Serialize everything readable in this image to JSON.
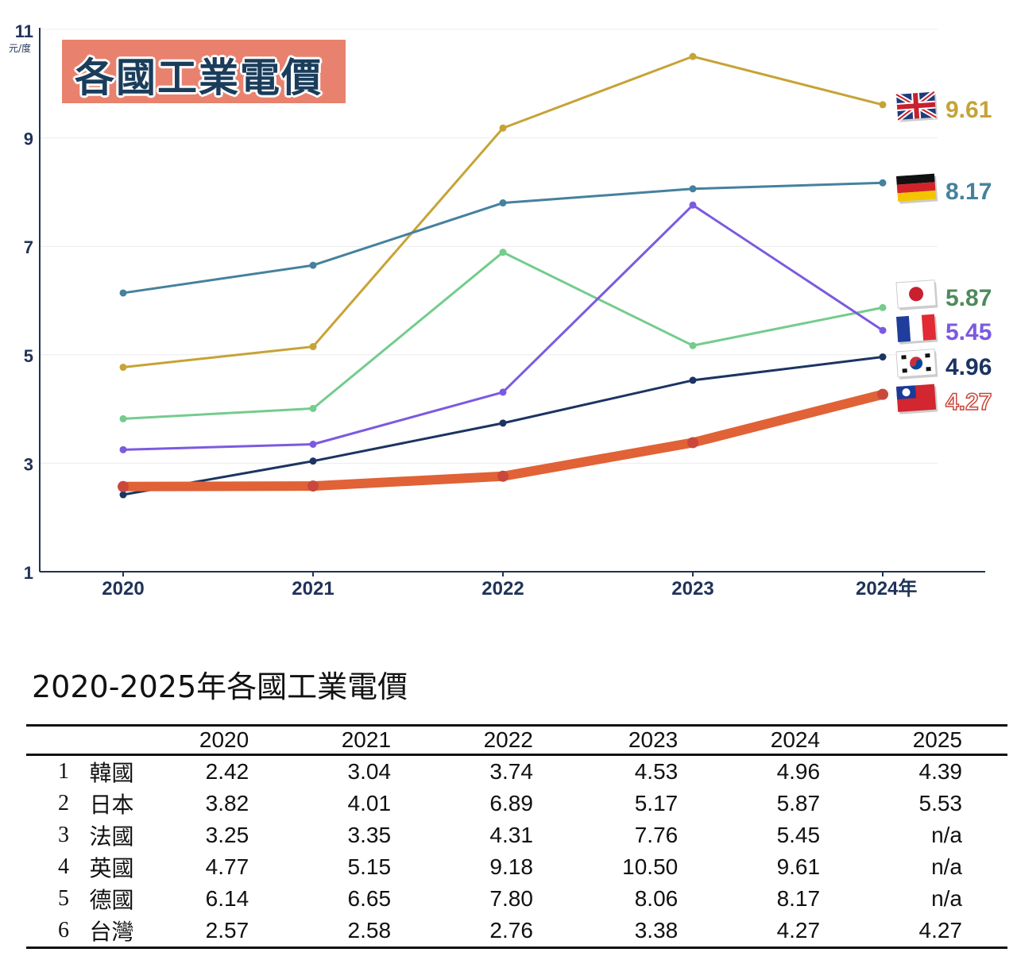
{
  "chart_data": {
    "type": "line",
    "title": "各國工業電價",
    "ylabel": "元/度",
    "x": [
      "2020",
      "2021",
      "2022",
      "2023",
      "2024"
    ],
    "x_tick_labels": [
      "2020",
      "2021",
      "2022",
      "2023",
      "2024年"
    ],
    "ylim": [
      1,
      11
    ],
    "y_ticks": [
      1,
      3,
      5,
      7,
      9,
      11
    ],
    "grid": true,
    "series": [
      {
        "name": "英國",
        "color": "#c6a336",
        "values": [
          4.77,
          5.15,
          9.18,
          10.5,
          9.61
        ],
        "end_label": "9.61",
        "flag": "uk-flag-icon"
      },
      {
        "name": "德國",
        "color": "#45819e",
        "values": [
          6.14,
          6.65,
          7.8,
          8.06,
          8.17
        ],
        "end_label": "8.17",
        "flag": "germany-flag-icon"
      },
      {
        "name": "日本",
        "color": "#74cc8d",
        "values": [
          3.82,
          4.01,
          6.89,
          5.17,
          5.87
        ],
        "end_label": "5.87",
        "label_color": "#4f8a5a",
        "flag": "japan-flag-icon"
      },
      {
        "name": "法國",
        "color": "#7b5ae0",
        "values": [
          3.25,
          3.35,
          4.31,
          7.76,
          5.45
        ],
        "end_label": "5.45",
        "flag": "france-flag-icon"
      },
      {
        "name": "韓國",
        "color": "#1c3463",
        "values": [
          2.42,
          3.04,
          3.74,
          4.53,
          4.96
        ],
        "end_label": "4.96",
        "flag": "korea-flag-icon"
      },
      {
        "name": "台灣",
        "color": "#e06236",
        "values": [
          2.57,
          2.58,
          2.76,
          3.38,
          4.27
        ],
        "end_label": "4.27",
        "label_color": "#c9473c",
        "flag": "taiwan-flag-icon"
      }
    ]
  },
  "table": {
    "title": "2020-2025年各國工業電價",
    "years": [
      "2020",
      "2021",
      "2022",
      "2023",
      "2024",
      "2025"
    ],
    "rows": [
      {
        "rank": "1",
        "country": "韓國",
        "values": [
          "2.42",
          "3.04",
          "3.74",
          "4.53",
          "4.96",
          "4.39"
        ]
      },
      {
        "rank": "2",
        "country": "日本",
        "values": [
          "3.82",
          "4.01",
          "6.89",
          "5.17",
          "5.87",
          "5.53"
        ]
      },
      {
        "rank": "3",
        "country": "法國",
        "values": [
          "3.25",
          "3.35",
          "4.31",
          "7.76",
          "5.45",
          "n/a"
        ]
      },
      {
        "rank": "4",
        "country": "英國",
        "values": [
          "4.77",
          "5.15",
          "9.18",
          "10.50",
          "9.61",
          "n/a"
        ]
      },
      {
        "rank": "5",
        "country": "德國",
        "values": [
          "6.14",
          "6.65",
          "7.80",
          "8.06",
          "8.17",
          "n/a"
        ]
      },
      {
        "rank": "6",
        "country": "台灣",
        "values": [
          "2.57",
          "2.58",
          "2.76",
          "3.38",
          "4.27",
          "4.27"
        ]
      }
    ]
  }
}
